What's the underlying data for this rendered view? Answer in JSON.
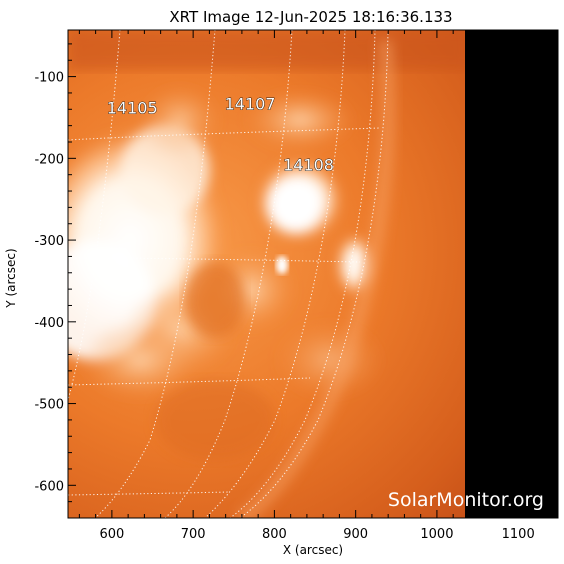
{
  "title": "XRT Image 12-Jun-2025 18:16:36.133",
  "x_axis": {
    "label": "X (arcsec)",
    "range": [
      546,
      1149
    ],
    "ticks": [
      "600",
      "700",
      "800",
      "900",
      "1000",
      "1100"
    ],
    "tick_values": [
      600,
      700,
      800,
      900,
      1000,
      1100
    ]
  },
  "y_axis": {
    "label": "Y (arcsec)",
    "range": [
      -640,
      -43
    ],
    "ticks": [
      "-100",
      "-200",
      "-300",
      "-400",
      "-500",
      "-600"
    ],
    "tick_values": [
      -100,
      -200,
      -300,
      -400,
      -500,
      -600
    ]
  },
  "active_regions": [
    {
      "label": "14105",
      "x": 625,
      "y": -145
    },
    {
      "label": "14107",
      "x": 770,
      "y": -140
    },
    {
      "label": "14108",
      "x": 842,
      "y": -215
    }
  ],
  "watermark": "SolarMonitor.org",
  "colors": {
    "colormap_dark": "#b23a12",
    "colormap_mid": "#e8711f",
    "colormap_bright": "#ffffff",
    "off_disk": "#000000",
    "grid": "#ffffff"
  }
}
